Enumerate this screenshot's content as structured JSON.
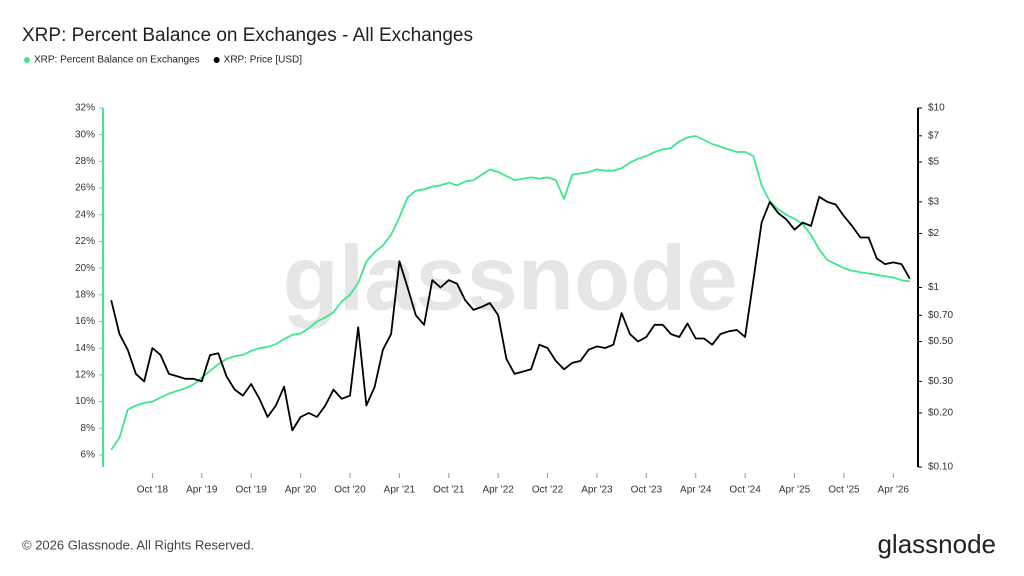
{
  "chart_data": {
    "type": "line",
    "title": "XRP: Percent Balance on Exchanges - All Exchanges",
    "watermark": "glassnode",
    "logo": "glassnode",
    "footer": "© 2026 Glassnode. All Rights Reserved.",
    "x": [
      "2018-05",
      "2018-06",
      "2018-07",
      "2018-08",
      "2018-09",
      "2018-10",
      "2018-11",
      "2018-12",
      "2019-01",
      "2019-02",
      "2019-03",
      "2019-04",
      "2019-05",
      "2019-06",
      "2019-07",
      "2019-08",
      "2019-09",
      "2019-10",
      "2019-11",
      "2019-12",
      "2020-01",
      "2020-02",
      "2020-03",
      "2020-04",
      "2020-05",
      "2020-06",
      "2020-07",
      "2020-08",
      "2020-09",
      "2020-10",
      "2020-11",
      "2020-12",
      "2021-01",
      "2021-02",
      "2021-03",
      "2021-04",
      "2021-05",
      "2021-06",
      "2021-07",
      "2021-08",
      "2021-09",
      "2021-10",
      "2021-11",
      "2021-12",
      "2022-01",
      "2022-02",
      "2022-03",
      "2022-04",
      "2022-05",
      "2022-06",
      "2022-07",
      "2022-08",
      "2022-09",
      "2022-10",
      "2022-11",
      "2022-12",
      "2023-01",
      "2023-02",
      "2023-03",
      "2023-04",
      "2023-05",
      "2023-06",
      "2023-07",
      "2023-08",
      "2023-09",
      "2023-10",
      "2023-11",
      "2023-12",
      "2024-01",
      "2024-02",
      "2024-03",
      "2024-04",
      "2024-05",
      "2024-06",
      "2024-07",
      "2024-08",
      "2024-09",
      "2024-10",
      "2024-11",
      "2024-12",
      "2025-01",
      "2025-02",
      "2025-03",
      "2025-04",
      "2025-05",
      "2025-06",
      "2025-07",
      "2025-08",
      "2025-09",
      "2025-10",
      "2025-11",
      "2025-12",
      "2026-01",
      "2026-02",
      "2026-03",
      "2026-04",
      "2026-05",
      "2026-06"
    ],
    "xlim": [
      "2018-04",
      "2026-07"
    ],
    "xticks": [
      {
        "value": "2018-10",
        "label": "Oct '18"
      },
      {
        "value": "2019-04",
        "label": "Apr '19"
      },
      {
        "value": "2019-10",
        "label": "Oct '19"
      },
      {
        "value": "2020-04",
        "label": "Apr '20"
      },
      {
        "value": "2020-10",
        "label": "Oct '20"
      },
      {
        "value": "2021-04",
        "label": "Apr '21"
      },
      {
        "value": "2021-10",
        "label": "Oct '21"
      },
      {
        "value": "2022-04",
        "label": "Apr '22"
      },
      {
        "value": "2022-10",
        "label": "Oct '22"
      },
      {
        "value": "2023-04",
        "label": "Apr '23"
      },
      {
        "value": "2023-10",
        "label": "Oct '23"
      },
      {
        "value": "2024-04",
        "label": "Apr '24"
      },
      {
        "value": "2024-10",
        "label": "Oct '24"
      },
      {
        "value": "2025-04",
        "label": "Apr '25"
      },
      {
        "value": "2025-10",
        "label": "Oct '25"
      },
      {
        "value": "2026-04",
        "label": "Apr '26"
      }
    ],
    "ylim": [
      5.1,
      32
    ],
    "yticks": [
      {
        "value": 6,
        "label": "6%"
      },
      {
        "value": 8,
        "label": "8%"
      },
      {
        "value": 10,
        "label": "10%"
      },
      {
        "value": 12,
        "label": "12%"
      },
      {
        "value": 14,
        "label": "14%"
      },
      {
        "value": 16,
        "label": "16%"
      },
      {
        "value": 18,
        "label": "18%"
      },
      {
        "value": 20,
        "label": "20%"
      },
      {
        "value": 22,
        "label": "22%"
      },
      {
        "value": 24,
        "label": "24%"
      },
      {
        "value": 26,
        "label": "26%"
      },
      {
        "value": 28,
        "label": "28%"
      },
      {
        "value": 30,
        "label": "30%"
      },
      {
        "value": 32,
        "label": "32%"
      }
    ],
    "y2lim": [
      0.1,
      10
    ],
    "y2log": true,
    "y2ticks": [
      {
        "value": 0.1,
        "label": "$0.10"
      },
      {
        "value": 0.2,
        "label": "$0.20"
      },
      {
        "value": 0.3,
        "label": "$0.30"
      },
      {
        "value": 0.5,
        "label": "$0.50"
      },
      {
        "value": 0.7,
        "label": "$0.70"
      },
      {
        "value": 1,
        "label": "$1"
      },
      {
        "value": 2,
        "label": "$2"
      },
      {
        "value": 3,
        "label": "$3"
      },
      {
        "value": 5,
        "label": "$5"
      },
      {
        "value": 7,
        "label": "$7"
      },
      {
        "value": 10,
        "label": "$10"
      }
    ],
    "series": [
      {
        "name": "XRP: Percent Balance on Exchanges",
        "color": "#3ee88a",
        "values": [
          6.4,
          7.3,
          9.4,
          9.7,
          9.9,
          10.0,
          10.3,
          10.6,
          10.8,
          11.0,
          11.3,
          11.8,
          12.3,
          12.8,
          13.2,
          13.4,
          13.5,
          13.8,
          14.0,
          14.1,
          14.3,
          14.7,
          15.0,
          15.1,
          15.5,
          16.0,
          16.3,
          16.7,
          17.5,
          18.0,
          18.9,
          20.5,
          21.2,
          21.7,
          22.5,
          23.8,
          25.3,
          25.8,
          25.9,
          26.1,
          26.2,
          26.4,
          26.2,
          26.5,
          26.6,
          27.0,
          27.4,
          27.2,
          26.9,
          26.6,
          26.7,
          26.8,
          26.7,
          26.8,
          26.6,
          25.2,
          27.0,
          27.1,
          27.2,
          27.4,
          27.3,
          27.3,
          27.5,
          27.9,
          28.2,
          28.4,
          28.7,
          28.9,
          29.0,
          29.5,
          29.8,
          29.9,
          29.6,
          29.3,
          29.1,
          28.9,
          28.7,
          28.7,
          28.4,
          26.2,
          25.0,
          24.4,
          24.0,
          23.7,
          23.3,
          22.5,
          21.4,
          20.6,
          20.3,
          20.0,
          19.8,
          19.7,
          19.6,
          19.5,
          19.4,
          19.3,
          19.1,
          19.0
        ]
      },
      {
        "name": "XRP: Price [USD]",
        "color": "#000000",
        "axis": "y2",
        "values": [
          0.85,
          0.55,
          0.45,
          0.33,
          0.3,
          0.46,
          0.42,
          0.33,
          0.32,
          0.31,
          0.31,
          0.3,
          0.42,
          0.43,
          0.32,
          0.27,
          0.25,
          0.29,
          0.24,
          0.19,
          0.22,
          0.28,
          0.16,
          0.19,
          0.2,
          0.19,
          0.22,
          0.27,
          0.24,
          0.25,
          0.6,
          0.22,
          0.28,
          0.45,
          0.55,
          1.4,
          1.0,
          0.7,
          0.62,
          1.1,
          1.0,
          1.1,
          1.05,
          0.85,
          0.75,
          0.78,
          0.82,
          0.7,
          0.4,
          0.33,
          0.34,
          0.35,
          0.48,
          0.46,
          0.39,
          0.35,
          0.38,
          0.39,
          0.45,
          0.47,
          0.46,
          0.48,
          0.72,
          0.55,
          0.5,
          0.53,
          0.62,
          0.62,
          0.55,
          0.53,
          0.63,
          0.52,
          0.52,
          0.48,
          0.55,
          0.57,
          0.58,
          0.53,
          1.1,
          2.3,
          3.0,
          2.6,
          2.4,
          2.1,
          2.3,
          2.2,
          3.2,
          3.0,
          2.9,
          2.5,
          2.2,
          1.9,
          1.9,
          1.45,
          1.35,
          1.38,
          1.35,
          1.12
        ]
      }
    ]
  }
}
